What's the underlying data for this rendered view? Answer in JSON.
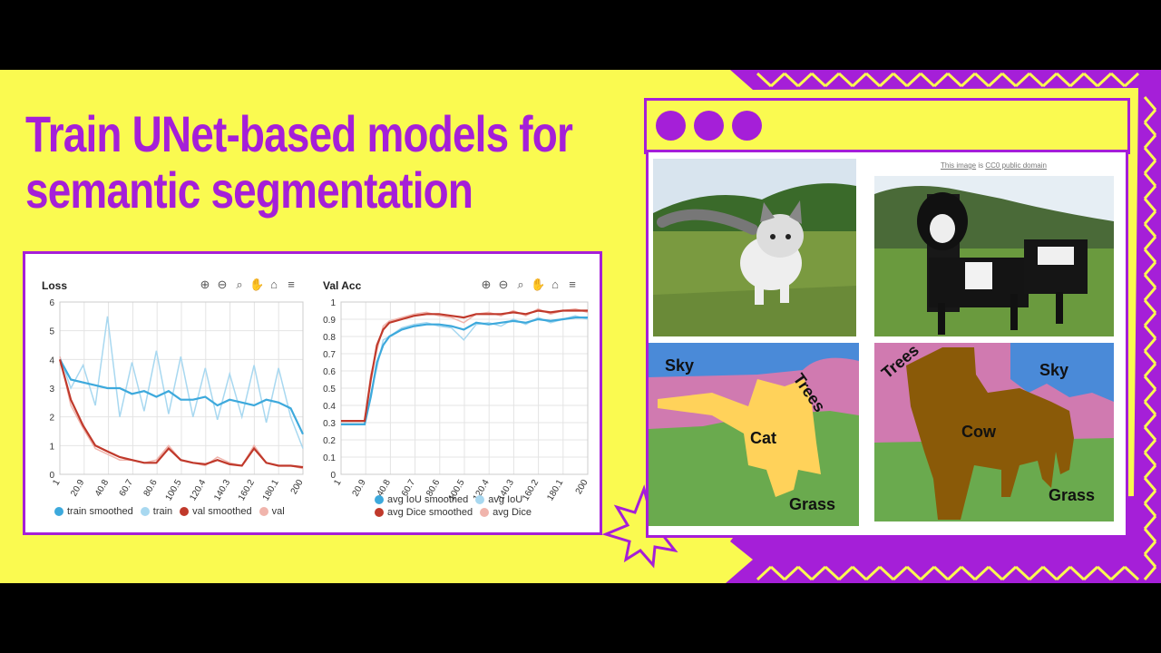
{
  "headline": {
    "line1": "Train UNet-based models for",
    "line2": "semantic segmentation"
  },
  "colors": {
    "accent": "#a51fd8",
    "background": "#fafa50",
    "train": "#3da9dc",
    "train_light": "#a8d8f0",
    "val": "#c0392b",
    "val_light": "#f0b4ac",
    "sky": "#4a8ad8",
    "trees": "#d07ab0",
    "grass": "#6aaa4e",
    "cat": "#ffd25a",
    "cow": "#8a5a08"
  },
  "toolbar_icons": [
    "zoom-in-icon",
    "zoom-out-icon",
    "zoom-selection-icon",
    "pan-hand-icon",
    "home-icon",
    "menu-icon"
  ],
  "loss_chart": {
    "title": "Loss",
    "legend": [
      "train smoothed",
      "train",
      "val smoothed",
      "val"
    ]
  },
  "acc_chart": {
    "title": "Val Acc",
    "legend": [
      "avg IoU smoothed",
      "avg IoU",
      "avg Dice smoothed",
      "avg Dice"
    ]
  },
  "chart_data": [
    {
      "type": "line",
      "title": "Loss",
      "x_ticks": [
        "1",
        "20.9",
        "40.8",
        "60.7",
        "80.6",
        "100.5",
        "120.4",
        "140.3",
        "160.2",
        "180.1",
        "200"
      ],
      "y_ticks": [
        "0",
        "1",
        "2",
        "3",
        "4",
        "5",
        "6"
      ],
      "xlim": [
        1,
        200
      ],
      "ylim": [
        0,
        6
      ],
      "grid": true,
      "legend_position": "bottom",
      "x": [
        1,
        10,
        20,
        30,
        40,
        50,
        60,
        70,
        80,
        90,
        100,
        110,
        120,
        130,
        140,
        150,
        160,
        170,
        180,
        190,
        200
      ],
      "series": [
        {
          "name": "train smoothed",
          "values": [
            4.0,
            3.3,
            3.2,
            3.1,
            3.0,
            3.0,
            2.8,
            2.9,
            2.7,
            2.9,
            2.6,
            2.6,
            2.7,
            2.4,
            2.6,
            2.5,
            2.4,
            2.6,
            2.5,
            2.3,
            1.4
          ]
        },
        {
          "name": "train",
          "values": [
            4.1,
            3.0,
            3.8,
            2.4,
            5.5,
            2.0,
            3.9,
            2.2,
            4.3,
            2.1,
            4.1,
            2.0,
            3.7,
            1.9,
            3.5,
            2.0,
            3.8,
            1.8,
            3.7,
            2.0,
            0.9
          ]
        },
        {
          "name": "val smoothed",
          "values": [
            4.0,
            2.6,
            1.7,
            1.0,
            0.8,
            0.6,
            0.5,
            0.4,
            0.4,
            0.9,
            0.5,
            0.4,
            0.35,
            0.5,
            0.35,
            0.3,
            0.9,
            0.4,
            0.3,
            0.3,
            0.25
          ]
        },
        {
          "name": "val",
          "values": [
            4.1,
            2.4,
            1.6,
            0.9,
            0.7,
            0.5,
            0.5,
            0.4,
            0.5,
            1.0,
            0.5,
            0.4,
            0.3,
            0.6,
            0.4,
            0.3,
            1.0,
            0.4,
            0.3,
            0.3,
            0.2
          ]
        }
      ]
    },
    {
      "type": "line",
      "title": "Val Acc",
      "x_ticks": [
        "1",
        "20.9",
        "40.8",
        "60.7",
        "80.6",
        "100.5",
        "120.4",
        "140.3",
        "160.2",
        "180.1",
        "200"
      ],
      "y_ticks": [
        "0",
        "0.1",
        "0.2",
        "0.3",
        "0.4",
        "0.5",
        "0.6",
        "0.7",
        "0.8",
        "0.9",
        "1"
      ],
      "xlim": [
        1,
        200
      ],
      "ylim": [
        0,
        1
      ],
      "grid": true,
      "legend_position": "bottom",
      "x": [
        1,
        10,
        20,
        25,
        30,
        35,
        40,
        50,
        60,
        70,
        80,
        90,
        100,
        110,
        120,
        130,
        140,
        150,
        160,
        170,
        180,
        190,
        200
      ],
      "series": [
        {
          "name": "avg IoU smoothed",
          "values": [
            0.29,
            0.29,
            0.29,
            0.45,
            0.65,
            0.75,
            0.8,
            0.84,
            0.86,
            0.87,
            0.87,
            0.86,
            0.84,
            0.88,
            0.87,
            0.88,
            0.89,
            0.88,
            0.9,
            0.89,
            0.9,
            0.91,
            0.91
          ]
        },
        {
          "name": "avg IoU",
          "values": [
            0.29,
            0.29,
            0.29,
            0.47,
            0.62,
            0.78,
            0.8,
            0.85,
            0.87,
            0.88,
            0.86,
            0.85,
            0.78,
            0.87,
            0.88,
            0.86,
            0.9,
            0.87,
            0.91,
            0.88,
            0.9,
            0.92,
            0.9
          ]
        },
        {
          "name": "avg Dice smoothed",
          "values": [
            0.31,
            0.31,
            0.31,
            0.55,
            0.75,
            0.84,
            0.88,
            0.9,
            0.92,
            0.93,
            0.93,
            0.92,
            0.91,
            0.93,
            0.93,
            0.93,
            0.94,
            0.93,
            0.95,
            0.94,
            0.95,
            0.95,
            0.95
          ]
        },
        {
          "name": "avg Dice",
          "values": [
            0.31,
            0.31,
            0.31,
            0.58,
            0.72,
            0.86,
            0.89,
            0.91,
            0.93,
            0.94,
            0.92,
            0.91,
            0.88,
            0.93,
            0.94,
            0.92,
            0.95,
            0.92,
            0.96,
            0.93,
            0.95,
            0.96,
            0.94
          ]
        }
      ]
    }
  ],
  "image_credit": {
    "prefix": "This image",
    "middle": " is ",
    "link": "CC0 public domain"
  },
  "segmentation": {
    "cat": {
      "sky": "Sky",
      "trees": "Trees",
      "object": "Cat",
      "grass": "Grass"
    },
    "cow": {
      "sky": "Sky",
      "trees": "Trees",
      "object": "Cow",
      "grass": "Grass"
    }
  }
}
